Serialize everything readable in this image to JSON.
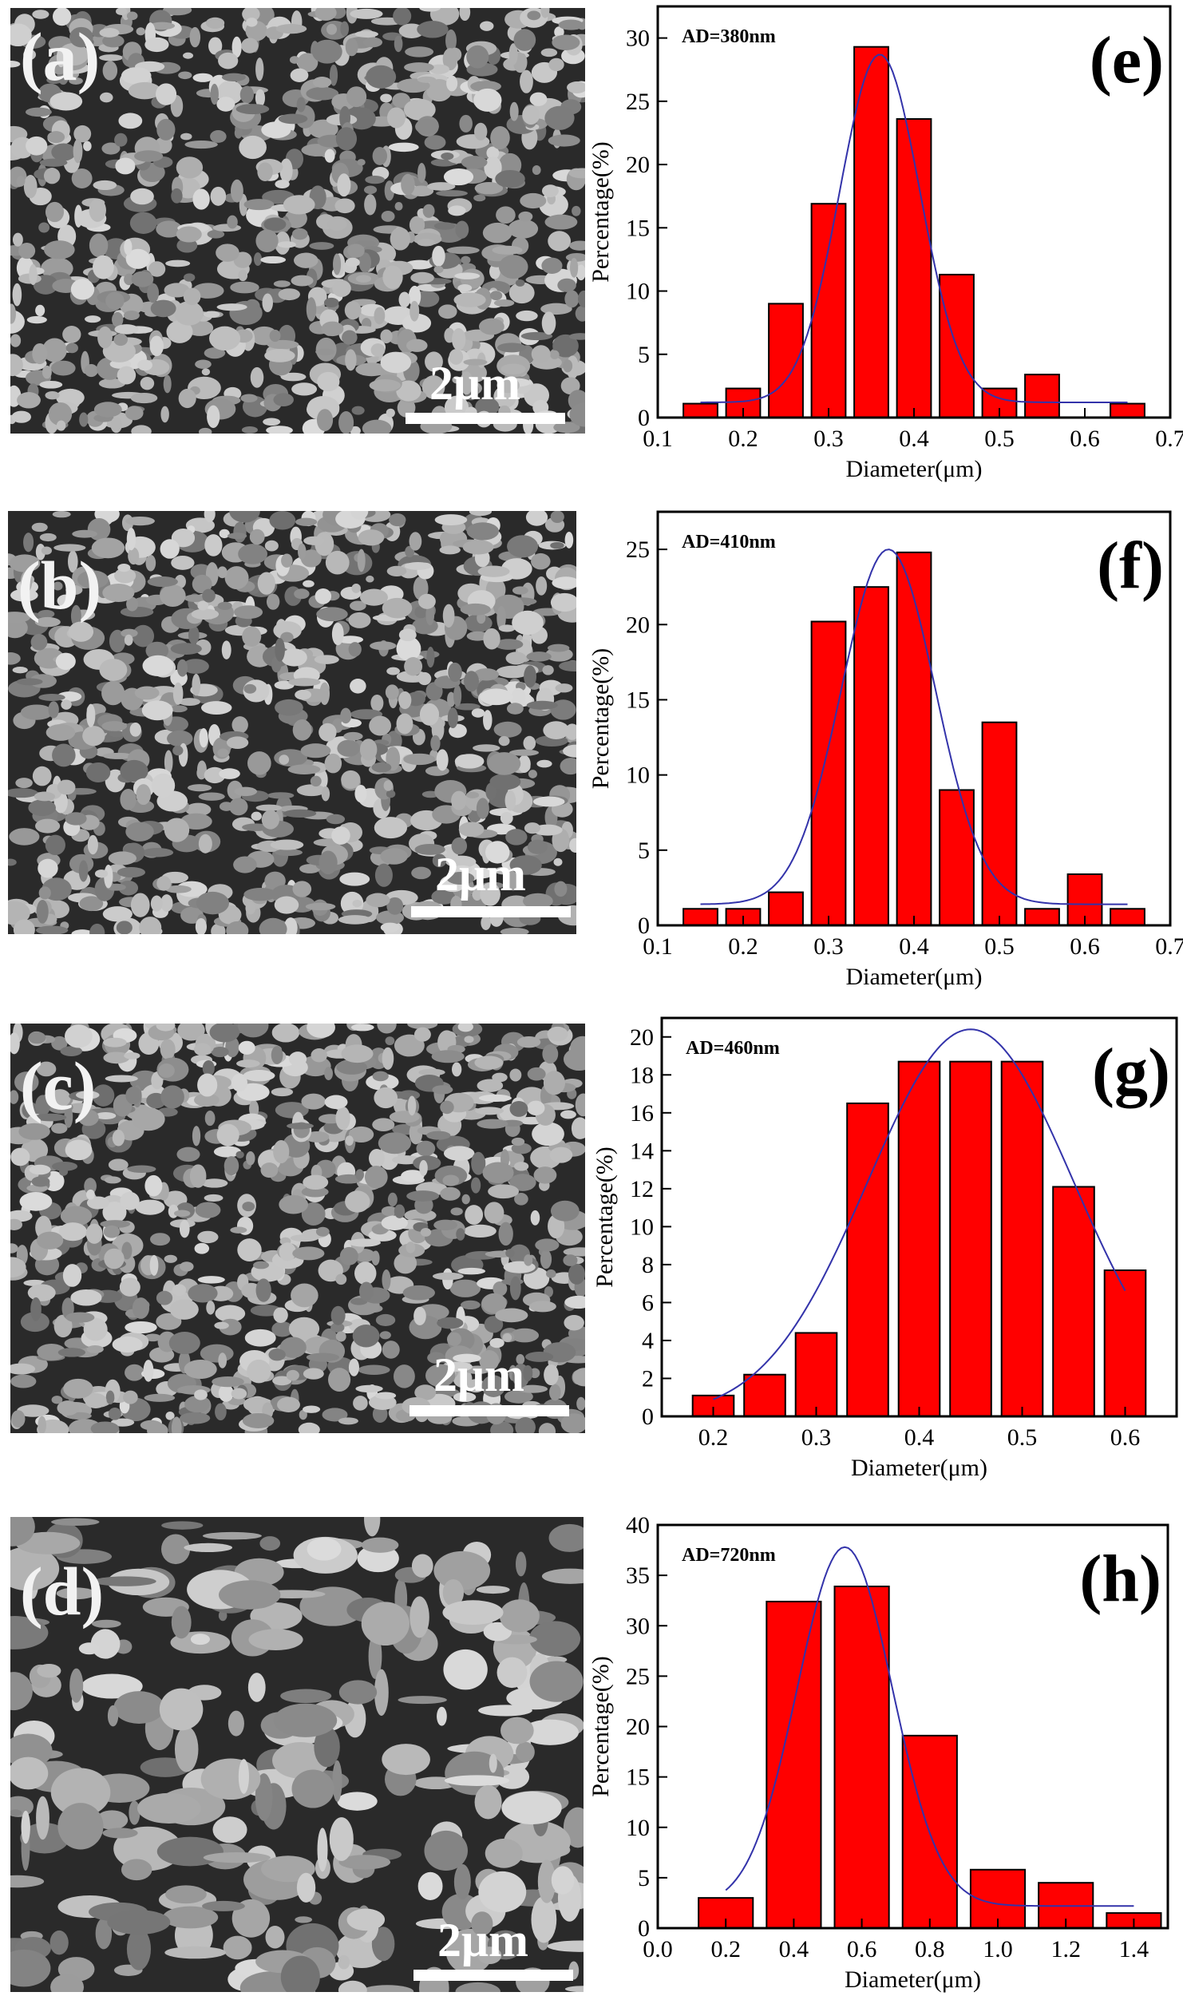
{
  "sem_panels": [
    {
      "label": "(a)",
      "scale_bar": "2μm"
    },
    {
      "label": "(b)",
      "scale_bar": "2μm"
    },
    {
      "label": "(c)",
      "scale_bar": "2μm"
    },
    {
      "label": "(d)",
      "scale_bar": "2μm"
    }
  ],
  "colors": {
    "bar": "#ff0000",
    "fit": "#3333aa",
    "sem_bg": "#2a2a2a"
  },
  "chart_data": [
    {
      "type": "bar",
      "panel": "(e)",
      "annotation": "AD=380nm",
      "xlabel": "Diameter(μm)",
      "ylabel": "Percentage(%)",
      "xlim": [
        0.1,
        0.7
      ],
      "ylim": [
        0,
        32.5
      ],
      "xticks": [
        "0.1",
        "0.2",
        "0.3",
        "0.4",
        "0.5",
        "0.6",
        "0.7"
      ],
      "yticks": [
        "0",
        "5",
        "10",
        "15",
        "20",
        "25",
        "30"
      ],
      "x": [
        0.15,
        0.2,
        0.25,
        0.3,
        0.35,
        0.4,
        0.45,
        0.5,
        0.55,
        0.6,
        0.65
      ],
      "values": [
        1.1,
        2.3,
        9.0,
        16.9,
        29.3,
        23.6,
        11.3,
        2.3,
        3.4,
        0,
        1.1
      ],
      "grid": false,
      "fit_curve": "gaussian"
    },
    {
      "type": "bar",
      "panel": "(f)",
      "annotation": "AD=410nm",
      "xlabel": "Diameter(μm)",
      "ylabel": "Percentage(%)",
      "xlim": [
        0.1,
        0.7
      ],
      "ylim": [
        0,
        27.5
      ],
      "xticks": [
        "0.1",
        "0.2",
        "0.3",
        "0.4",
        "0.5",
        "0.6",
        "0.7"
      ],
      "yticks": [
        "0",
        "5",
        "10",
        "15",
        "20",
        "25"
      ],
      "x": [
        0.15,
        0.2,
        0.25,
        0.3,
        0.35,
        0.4,
        0.45,
        0.5,
        0.55,
        0.6,
        0.65
      ],
      "values": [
        1.1,
        1.1,
        2.2,
        20.2,
        22.5,
        24.8,
        9.0,
        13.5,
        1.1,
        3.4,
        1.1
      ],
      "grid": false,
      "fit_curve": "gaussian"
    },
    {
      "type": "bar",
      "panel": "(g)",
      "annotation": "AD=460nm",
      "xlabel": "Diameter(μm)",
      "ylabel": "Percentage(%)",
      "xlim": [
        0.15,
        0.65
      ],
      "ylim": [
        0,
        21
      ],
      "xticks": [
        "0.2",
        "0.3",
        "0.4",
        "0.5",
        "0.6"
      ],
      "yticks": [
        "0",
        "2",
        "4",
        "6",
        "8",
        "10",
        "12",
        "14",
        "16",
        "18",
        "20"
      ],
      "x": [
        0.2,
        0.25,
        0.3,
        0.35,
        0.4,
        0.45,
        0.5,
        0.55,
        0.6
      ],
      "values": [
        1.1,
        2.2,
        4.4,
        16.5,
        18.7,
        18.7,
        18.7,
        12.1,
        7.7
      ],
      "grid": false,
      "fit_curve": "gaussian"
    },
    {
      "type": "bar",
      "panel": "(h)",
      "annotation": "AD=720nm",
      "xlabel": "Diameter(μm)",
      "ylabel": "Percentage(%)",
      "xlim": [
        0.0,
        1.5
      ],
      "ylim": [
        0,
        40
      ],
      "xticks": [
        "0.0",
        "0.2",
        "0.4",
        "0.6",
        "0.8",
        "1.0",
        "1.2",
        "1.4"
      ],
      "yticks": [
        "0",
        "5",
        "10",
        "15",
        "20",
        "25",
        "30",
        "35",
        "40"
      ],
      "x": [
        0.2,
        0.4,
        0.6,
        0.8,
        1.0,
        1.2,
        1.4
      ],
      "values": [
        3.0,
        32.4,
        33.9,
        19.1,
        5.8,
        4.5,
        1.5
      ],
      "grid": false,
      "fit_curve": "gaussian"
    }
  ]
}
